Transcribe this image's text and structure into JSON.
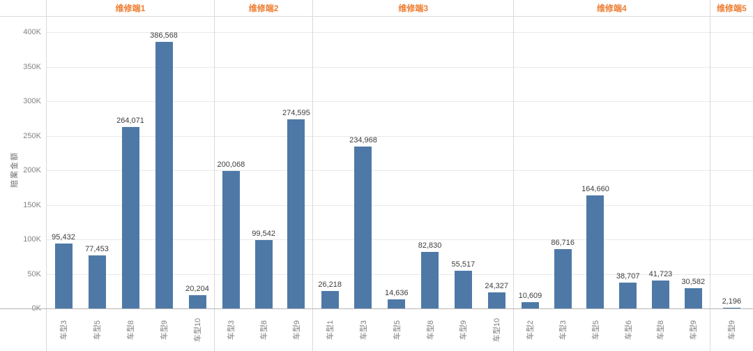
{
  "chart_data": {
    "type": "bar",
    "title": "",
    "ylabel": "赔案金额",
    "xlabel": "",
    "ylim": [
      0,
      400000
    ],
    "ytick_step": 50000,
    "grid": true,
    "legend": null,
    "yticks": [
      {
        "value": 0,
        "label": "0K"
      },
      {
        "value": 50000,
        "label": "50K"
      },
      {
        "value": 100000,
        "label": "100K"
      },
      {
        "value": 150000,
        "label": "150K"
      },
      {
        "value": 200000,
        "label": "200K"
      },
      {
        "value": 250000,
        "label": "250K"
      },
      {
        "value": 300000,
        "label": "300K"
      },
      {
        "value": 350000,
        "label": "350K"
      },
      {
        "value": 400000,
        "label": "400K"
      }
    ],
    "groups": [
      {
        "label": "维修端1",
        "bars": [
          {
            "category": "车型3",
            "value": 95432,
            "label": "95,432"
          },
          {
            "category": "车型5",
            "value": 77453,
            "label": "77,453"
          },
          {
            "category": "车型8",
            "value": 264071,
            "label": "264,071"
          },
          {
            "category": "车型9",
            "value": 386568,
            "label": "386,568"
          },
          {
            "category": "车型10",
            "value": 20204,
            "label": "20,204"
          }
        ]
      },
      {
        "label": "维修端2",
        "bars": [
          {
            "category": "车型3",
            "value": 200068,
            "label": "200,068"
          },
          {
            "category": "车型8",
            "value": 99542,
            "label": "99,542"
          },
          {
            "category": "车型9",
            "value": 274595,
            "label": "274,595"
          }
        ]
      },
      {
        "label": "维修端3",
        "bars": [
          {
            "category": "车型1",
            "value": 26218,
            "label": "26,218"
          },
          {
            "category": "车型3",
            "value": 234968,
            "label": "234,968"
          },
          {
            "category": "车型5",
            "value": 14636,
            "label": "14,636"
          },
          {
            "category": "车型8",
            "value": 82830,
            "label": "82,830"
          },
          {
            "category": "车型9",
            "value": 55517,
            "label": "55,517"
          },
          {
            "category": "车型10",
            "value": 24327,
            "label": "24,327"
          }
        ]
      },
      {
        "label": "维修端4",
        "bars": [
          {
            "category": "车型2",
            "value": 10609,
            "label": "10,609"
          },
          {
            "category": "车型3",
            "value": 86716,
            "label": "86,716"
          },
          {
            "category": "车型5",
            "value": 164660,
            "label": "164,660"
          },
          {
            "category": "车型6",
            "value": 38707,
            "label": "38,707"
          },
          {
            "category": "车型8",
            "value": 41723,
            "label": "41,723"
          },
          {
            "category": "车型9",
            "value": 30582,
            "label": "30,582"
          }
        ]
      },
      {
        "label": "维修端5",
        "bars": [
          {
            "category": "车型9",
            "value": 2196,
            "label": "2,196"
          }
        ]
      }
    ]
  },
  "colors": {
    "bar": "#4e79a7",
    "group_header": "#ed7d31",
    "gridline": "#e9e9e9",
    "divider": "#d9d9d9",
    "axis_line": "#b5b5b5",
    "tick_text": "#828282",
    "value_label": "#3d3d3d",
    "category_text": "#7e7e7e"
  }
}
